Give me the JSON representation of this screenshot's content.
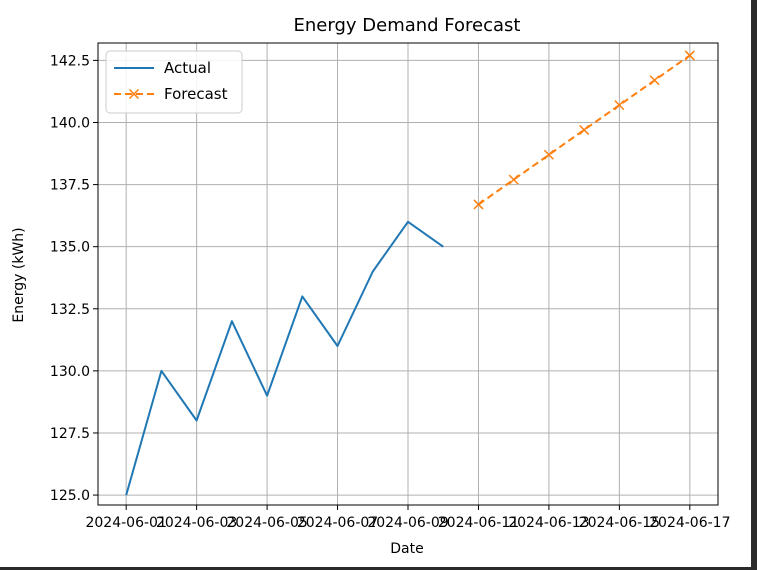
{
  "chart_data": {
    "type": "line",
    "title": "Energy Demand Forecast",
    "xlabel": "Date",
    "ylabel": "Energy (kWh)",
    "xlim": [
      "2024-06-01",
      "2024-06-17"
    ],
    "ylim": [
      124.6,
      143.2
    ],
    "x_ticks": [
      "2024-06-01",
      "2024-06-03",
      "2024-06-05",
      "2024-06-07",
      "2024-06-09",
      "2024-06-11",
      "2024-06-13",
      "2024-06-15",
      "2024-06-17"
    ],
    "y_ticks": [
      125.0,
      127.5,
      130.0,
      132.5,
      135.0,
      137.5,
      140.0,
      142.5
    ],
    "grid": true,
    "legend": "top-left",
    "series": [
      {
        "name": "Actual",
        "color": "#1f77b4",
        "style": "solid",
        "marker": "none",
        "x": [
          "2024-06-01",
          "2024-06-02",
          "2024-06-03",
          "2024-06-04",
          "2024-06-05",
          "2024-06-06",
          "2024-06-07",
          "2024-06-08",
          "2024-06-09",
          "2024-06-10"
        ],
        "values": [
          125,
          130,
          128,
          132,
          129,
          133,
          131,
          134,
          136,
          135
        ]
      },
      {
        "name": "Forecast",
        "color": "#ff7f0e",
        "style": "dashed",
        "marker": "x",
        "x": [
          "2024-06-11",
          "2024-06-12",
          "2024-06-13",
          "2024-06-14",
          "2024-06-15",
          "2024-06-16",
          "2024-06-17"
        ],
        "values": [
          136.7,
          137.7,
          138.7,
          139.7,
          140.7,
          141.7,
          142.7
        ]
      }
    ]
  }
}
